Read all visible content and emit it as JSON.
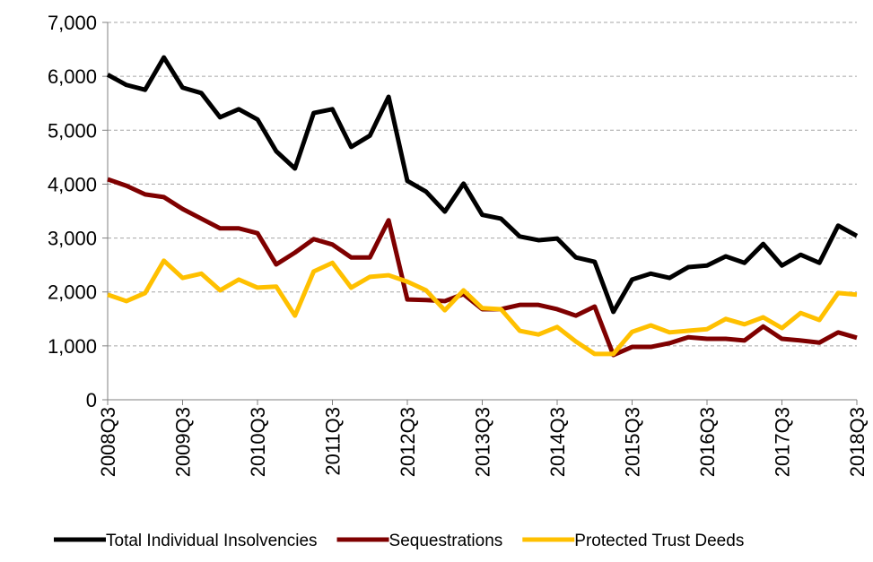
{
  "chart_data": {
    "type": "line",
    "categories": [
      "2008Q3",
      null,
      null,
      null,
      "2009Q3",
      null,
      null,
      null,
      "2010Q3",
      null,
      null,
      null,
      "2011Q3",
      null,
      null,
      null,
      "2012Q3",
      null,
      null,
      null,
      "2013Q3",
      null,
      null,
      null,
      "2014Q3",
      null,
      null,
      null,
      "2015Q3",
      null,
      null,
      null,
      "2016Q3",
      null,
      null,
      null,
      "2017Q3",
      null,
      null,
      null,
      "2018Q3"
    ],
    "series": [
      {
        "name": "Total Individual Insolvencies",
        "color": "#000000",
        "values": [
          6030,
          5840,
          5750,
          6350,
          5790,
          5690,
          5240,
          5390,
          5200,
          4610,
          4290,
          5320,
          5390,
          4690,
          4900,
          5620,
          4060,
          3860,
          3490,
          4010,
          3430,
          3360,
          3030,
          2960,
          2990,
          2640,
          2560,
          1630,
          2230,
          2340,
          2260,
          2460,
          2490,
          2660,
          2540,
          2890,
          2490,
          2690,
          2540,
          3230,
          3040
        ]
      },
      {
        "name": "Sequestrations",
        "color": "#7f0000",
        "values": [
          4090,
          3970,
          3810,
          3760,
          3540,
          3360,
          3180,
          3180,
          3090,
          2510,
          2730,
          2980,
          2880,
          2640,
          2640,
          3330,
          1860,
          1850,
          1830,
          1960,
          1680,
          1680,
          1760,
          1760,
          1680,
          1560,
          1730,
          830,
          980,
          980,
          1050,
          1160,
          1130,
          1130,
          1100,
          1360,
          1130,
          1100,
          1060,
          1250,
          1150
        ]
      },
      {
        "name": "Protected Trust Deeds",
        "color": "#ffc000",
        "values": [
          1950,
          1830,
          1980,
          2580,
          2260,
          2340,
          2030,
          2230,
          2080,
          2100,
          1560,
          2380,
          2540,
          2080,
          2280,
          2310,
          2190,
          2030,
          1660,
          2030,
          1700,
          1680,
          1280,
          1210,
          1350,
          1080,
          850,
          850,
          1260,
          1380,
          1250,
          1280,
          1310,
          1500,
          1400,
          1530,
          1330,
          1610,
          1480,
          1980,
          1950
        ]
      }
    ],
    "ylim": [
      0,
      7000
    ],
    "yticks": [
      0,
      {
        "value": 1000,
        "label": "1,000"
      },
      {
        "value": 2000,
        "label": "2,000"
      },
      {
        "value": 3000,
        "label": "3,000"
      },
      {
        "value": 4000,
        "label": "4,000"
      },
      {
        "value": 5000,
        "label": "5,000"
      },
      {
        "value": 6000,
        "label": "6,000"
      },
      {
        "value": 7000,
        "label": "7,000"
      }
    ],
    "grid": true,
    "legend": "bottom"
  }
}
